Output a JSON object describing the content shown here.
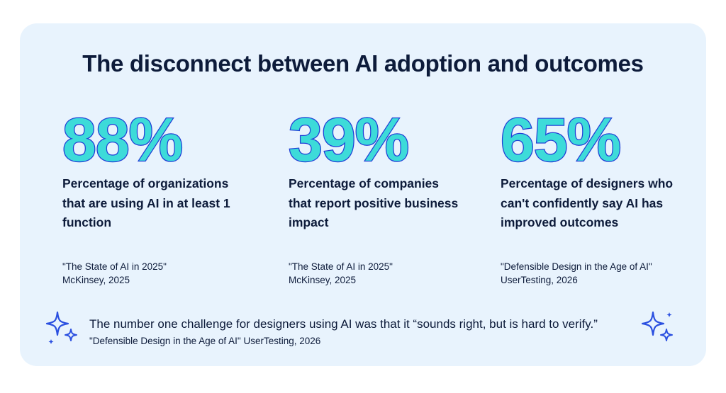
{
  "title": "The disconnect between AI adoption and outcomes",
  "stats": [
    {
      "value": "88%",
      "description": "Percentage of organizations that are using AI in at least 1 function",
      "source_title": "\"The State of AI in 2025\"",
      "source_org": "McKinsey, 2025"
    },
    {
      "value": "39%",
      "description": "Percentage of companies that report positive business impact",
      "source_title": "\"The State of AI in 2025\"",
      "source_org": "McKinsey, 2025"
    },
    {
      "value": "65%",
      "description": "Percentage of designers who can't confidently say AI has improved outcomes",
      "source_title": "\"Defensible Design in the Age of AI\"",
      "source_org": "UserTesting, 2026"
    }
  ],
  "quote": {
    "text": "The number one challenge for designers using AI was that it “sounds right, but is hard to verify.”",
    "citation": "\"Defensible Design in the Age of AI\" UserTesting, 2026"
  },
  "colors": {
    "card_background": "#e8f3fd",
    "heading": "#0d1b3a",
    "stat_fill": "#3ddbd9",
    "stat_outline": "#1f3fd6",
    "sparkle": "#2a4fe0"
  },
  "icons": [
    "sparkle-icon-left",
    "sparkle-icon-right"
  ]
}
